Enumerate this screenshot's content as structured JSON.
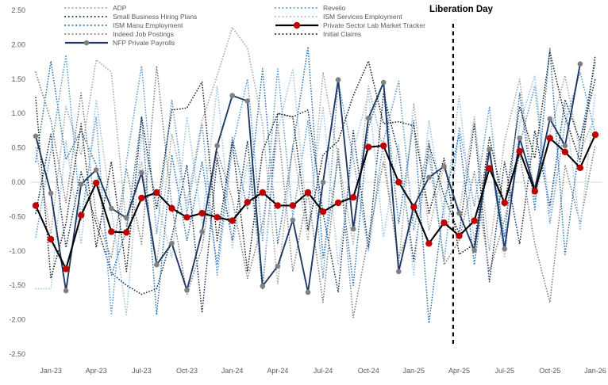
{
  "chart_data": {
    "type": "line",
    "title": "",
    "months": [
      "Dec-22",
      "Jan-23",
      "Feb-23",
      "Mar-23",
      "Apr-23",
      "May-23",
      "Jun-23",
      "Jul-23",
      "Aug-23",
      "Sep-23",
      "Oct-23",
      "Nov-23",
      "Dec-23",
      "Jan-24",
      "Feb-24",
      "Mar-24",
      "Apr-24",
      "May-24",
      "Jun-24",
      "Jul-24",
      "Aug-24",
      "Sep-24",
      "Oct-24",
      "Nov-24",
      "Dec-24",
      "Jan-25",
      "Feb-25",
      "Mar-25",
      "Apr-25",
      "May-25",
      "Jun-25",
      "Jul-25",
      "Aug-25",
      "Sep-25",
      "Oct-25",
      "Nov-25",
      "Dec-25",
      "Jan-26"
    ],
    "y_axis": {
      "ticks": [
        "2.50",
        "2.00",
        "1.50",
        "1.00",
        "0.50",
        "0.00",
        "-0.50",
        "-1.00",
        "-1.50",
        "-2.00",
        "-2.50"
      ],
      "tick_values": [
        2.5,
        2.0,
        1.5,
        1.0,
        0.5,
        0.0,
        -0.5,
        -1.0,
        -1.5,
        -2.0,
        -2.5
      ],
      "range": [
        -2.5,
        2.5
      ],
      "zero_gridline": true
    },
    "x_axis": {
      "tick_labels": [
        "Jan-23",
        "Apr-23",
        "Jul-23",
        "Oct-23",
        "Jan-24",
        "Apr-24",
        "Jul-24",
        "Oct-24",
        "Jan-25",
        "Apr-25",
        "Jul-25",
        "Oct-25",
        "Jan-26"
      ],
      "tick_indices": [
        1,
        4,
        7,
        10,
        13,
        16,
        19,
        22,
        25,
        28,
        31,
        34,
        37
      ]
    },
    "annotation": {
      "label": "Liberation Day",
      "x_index": 27.6,
      "line_style": "dashed",
      "line_color": "#000000"
    },
    "series": [
      {
        "name": "ADP",
        "color": "#A6A6A6",
        "style": "dotted",
        "values": [
          0.5,
          -0.75,
          1.1,
          0.4,
          1.78,
          1.6,
          -0.65,
          0.3,
          -1.2,
          0.7,
          -0.3,
          0.9,
          1.55,
          2.25,
          1.95,
          0.85,
          -1.48,
          0.55,
          -0.85,
          1.6,
          0.35,
          -0.9,
          1.4,
          0.45,
          -1.2,
          1.15,
          -0.7,
          0.25,
          -0.45,
          0.95,
          -1.0,
          0.6,
          1.5,
          -0.25,
          0.7,
          1.55,
          0.45,
          0.95
        ]
      },
      {
        "name": "Small Business Hiring Plans",
        "color": "#17365D",
        "style": "dotted",
        "values": [
          -0.45,
          0.7,
          -0.95,
          0.15,
          -0.6,
          -1.32,
          -1.5,
          -1.63,
          -1.55,
          -0.8,
          0.25,
          -1.9,
          0.35,
          -0.85,
          0.6,
          -1.55,
          1.0,
          0.95,
          1.05,
          -0.45,
          -1.6,
          0.75,
          -0.95,
          1.3,
          0.4,
          -1.15,
          0.55,
          -0.2,
          -0.75,
          0.85,
          -1.45,
          0.3,
          -0.9,
          0.75,
          -0.35,
          1.2,
          0.6,
          1.5
        ]
      },
      {
        "name": "ISM Manu Employment",
        "color": "#2E74B5",
        "style": "dotted",
        "values": [
          0.3,
          1.76,
          0.33,
          0.75,
          0.25,
          -1.35,
          -0.7,
          0.95,
          -1.93,
          0.4,
          -0.85,
          0.3,
          -1.2,
          0.65,
          -0.4,
          1.65,
          -0.9,
          0.5,
          1.97,
          -1.1,
          0.35,
          -1.5,
          0.8,
          1.47,
          -0.6,
          0.9,
          -2.05,
          -0.3,
          0.7,
          -1.2,
          0.45,
          -0.8,
          1.3,
          -0.4,
          1.95,
          -1.05,
          0.6,
          1.75
        ]
      },
      {
        "name": "Indeed Job Postings",
        "color": "#808080",
        "style": "dotted",
        "values": [
          1.6,
          0.9,
          -0.3,
          1.3,
          -0.5,
          -1.1,
          0.2,
          -0.9,
          1.69,
          -0.35,
          -1.63,
          -0.95,
          0.45,
          -0.25,
          -1.4,
          -0.6,
          0.85,
          -1.3,
          -0.15,
          -1.75,
          0.5,
          -1.97,
          -0.8,
          0.3,
          -1.1,
          -0.5,
          0.6,
          -1.2,
          -0.85,
          0.15,
          -1.3,
          -0.55,
          0.4,
          -0.9,
          -1.75,
          0.25,
          -0.6,
          0.55
        ]
      },
      {
        "name": "NFP Private Payrolls",
        "color": "#1F3864",
        "style": "solid",
        "marker": {
          "shape": "circle",
          "color": "#808080",
          "size": 3.3
        },
        "values": [
          0.67,
          -0.16,
          -1.58,
          -0.03,
          0.18,
          -0.38,
          -0.52,
          0.14,
          -1.2,
          -0.89,
          -1.57,
          -0.72,
          0.53,
          1.26,
          1.18,
          -1.51,
          -1.22,
          -0.55,
          -1.6,
          0.0,
          1.49,
          -0.68,
          0.93,
          1.45,
          -1.3,
          -0.35,
          0.07,
          0.23,
          -0.45,
          -0.99,
          0.48,
          -0.97,
          0.64,
          -0.1,
          0.92,
          0.53,
          1.72,
          null
        ]
      },
      {
        "name": "Revelio",
        "color": "#5B9BD5",
        "style": "dotted",
        "values": [
          -0.8,
          0.45,
          1.85,
          -0.55,
          0.95,
          -1.93,
          0.3,
          1.69,
          -0.75,
          1.2,
          -0.45,
          0.85,
          -1.35,
          0.5,
          1.5,
          -0.85,
          1.65,
          -0.5,
          0.9,
          -1.4,
          1.47,
          0.35,
          -1.0,
          0.6,
          1.47,
          -0.7,
          0.4,
          -1.15,
          0.8,
          -0.35,
          1.1,
          -0.95,
          0.55,
          1.4,
          -0.6,
          0.85,
          1.6,
          0.7
        ]
      },
      {
        "name": "ISM Services Employment",
        "color": "#9DC3E6",
        "style": "dotted",
        "values": [
          -1.55,
          -1.55,
          0.6,
          -0.9,
          1.2,
          -0.4,
          -1.93,
          0.7,
          -0.25,
          -1.1,
          0.95,
          -0.6,
          1.4,
          -0.95,
          0.3,
          -1.45,
          0.75,
          1.65,
          -0.65,
          1.1,
          -1.2,
          0.45,
          1.3,
          -0.8,
          0.55,
          -1.35,
          0.9,
          -0.5,
          1.25,
          -0.9,
          0.4,
          -1.1,
          0.85,
          1.55,
          -0.45,
          1.15,
          -0.7,
          1.3
        ]
      },
      {
        "name": "Private Sector Lab Market Tracker",
        "color": "#000000",
        "style": "solid",
        "marker": {
          "shape": "circle",
          "color": "#C00000",
          "size": 4.2
        },
        "values": [
          -0.34,
          -0.83,
          -1.26,
          -0.48,
          -0.01,
          -0.72,
          -0.73,
          -0.23,
          -0.15,
          -0.38,
          -0.51,
          -0.45,
          -0.51,
          -0.56,
          -0.29,
          -0.15,
          -0.34,
          -0.34,
          -0.15,
          -0.43,
          -0.3,
          -0.22,
          0.51,
          0.53,
          0.0,
          -0.36,
          -0.89,
          -0.59,
          -0.78,
          -0.56,
          0.2,
          -0.3,
          0.45,
          -0.13,
          0.64,
          0.44,
          0.21,
          0.69
        ]
      },
      {
        "name": "Initial Claims",
        "color": "#262626",
        "style": "dotted",
        "values": [
          1.23,
          -1.4,
          -0.6,
          0.85,
          -0.95,
          0.3,
          -1.3,
          0.95,
          -0.4,
          1.05,
          1.08,
          1.46,
          -0.85,
          0.6,
          -1.3,
          0.45,
          1.0,
          0.95,
          -0.7,
          0.4,
          0.6,
          1.26,
          1.76,
          0.85,
          0.88,
          0.82,
          -0.45,
          0.35,
          -1.05,
          -0.9,
          0.65,
          -0.35,
          1.1,
          0.35,
          1.9,
          0.95,
          0.3,
          1.85
        ]
      }
    ],
    "legend": {
      "columns": [
        [
          "ADP",
          "Small Business Hiring Plans",
          "ISM Manu Employment",
          "Indeed Job Postings",
          "NFP Private Payrolls"
        ],
        [
          "Revelio",
          "ISM Services Employment",
          "Private Sector Lab Market Tracker",
          "Initial Claims"
        ]
      ],
      "text_color": "#595959"
    },
    "axis_text_color": "#595959"
  }
}
